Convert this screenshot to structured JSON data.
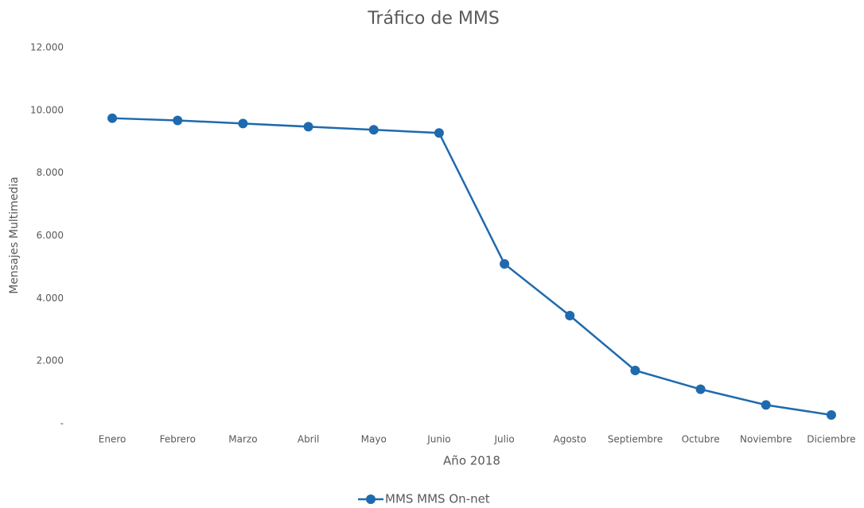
{
  "chart_data": {
    "type": "line",
    "title": "Tráfico de MMS",
    "x_label": "Año 2018",
    "y_label": "Mensajes Multimedia",
    "categories": [
      "Enero",
      "Febrero",
      "Marzo",
      "Abril",
      "Mayo",
      "Junio",
      "Julio",
      "Agosto",
      "Septiembre",
      "Octubre",
      "Noviembre",
      "Diciembre"
    ],
    "series": [
      {
        "name": "MMS MMS On-net",
        "color": "#1f6aae",
        "values": [
          9750,
          9680,
          9580,
          9480,
          9380,
          9280,
          5100,
          3450,
          1700,
          1100,
          600,
          280
        ]
      }
    ],
    "ylim": [
      0,
      12000
    ],
    "yticks": [
      {
        "value": 0,
        "label": "-"
      },
      {
        "value": 2000,
        "label": "2.000"
      },
      {
        "value": 4000,
        "label": "4.000"
      },
      {
        "value": 6000,
        "label": "6.000"
      },
      {
        "value": 8000,
        "label": "8.000"
      },
      {
        "value": 10000,
        "label": "10.000"
      },
      {
        "value": 12000,
        "label": "12.000"
      }
    ],
    "grid": false,
    "legend": "bottom"
  }
}
